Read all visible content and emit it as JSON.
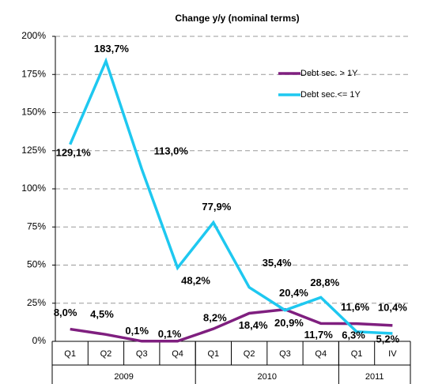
{
  "chart_data": {
    "type": "line",
    "title": "Change y/y (nominal terms)",
    "categories": [
      "Q1",
      "Q2",
      "Q3",
      "Q4",
      "Q1",
      "Q2",
      "Q3",
      "Q4",
      "Q1",
      "IV"
    ],
    "groups": [
      {
        "label": "2009",
        "span": 4
      },
      {
        "label": "2010",
        "span": 4
      },
      {
        "label": "2011",
        "span": 2
      }
    ],
    "series": [
      {
        "name": "Debt sec. > 1Y",
        "color": "#7f1f7f",
        "values": [
          8.0,
          4.5,
          0.1,
          0.1,
          8.2,
          18.4,
          20.9,
          11.7,
          11.6,
          10.4
        ],
        "value_labels": [
          "8,0%",
          "4,5%",
          "0,1%",
          "0,1%",
          "8,2%",
          "18,4%",
          "20,9%",
          "11,7%",
          "11,6%",
          "10,4%"
        ]
      },
      {
        "name": "Debt sec.<= 1Y",
        "color": "#1ec8f0",
        "values": [
          129.1,
          183.7,
          113.0,
          48.2,
          77.9,
          35.4,
          20.4,
          28.8,
          6.3,
          5.2
        ],
        "value_labels": [
          "129,1%",
          "183,7%",
          "113,0%",
          "48,2%",
          "77,9%",
          "35,4%",
          "20,4%",
          "28,8%",
          "6,3%",
          "5,2%"
        ]
      }
    ],
    "ylim": [
      0,
      200
    ],
    "yticks": [
      {
        "value": 0,
        "label": "0%"
      },
      {
        "value": 25,
        "label": "25%"
      },
      {
        "value": 50,
        "label": "50%"
      },
      {
        "value": 75,
        "label": "75%"
      },
      {
        "value": 100,
        "label": "100%"
      },
      {
        "value": 125,
        "label": "125%"
      },
      {
        "value": 150,
        "label": "150%"
      },
      {
        "value": 175,
        "label": "175%"
      },
      {
        "value": 200,
        "label": "200%"
      }
    ],
    "grid": true,
    "legend": "upper right"
  }
}
